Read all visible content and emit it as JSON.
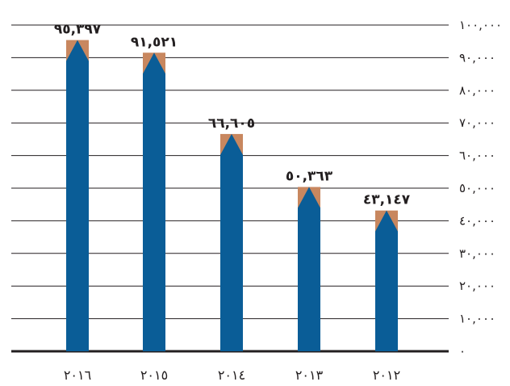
{
  "chart_data": {
    "type": "bar",
    "title": "",
    "xlabel": "",
    "ylabel": "",
    "categories": [
      "٢٠١٦",
      "٢٠١٥",
      "٢٠١٤",
      "٢٠١٣",
      "٢٠١٢"
    ],
    "values": [
      95397,
      91521,
      66605,
      50363,
      43147
    ],
    "value_labels": [
      "٩٥,٣٩٧",
      "٩١,٥٢١",
      "٦٦,٦٠٥",
      "٥٠,٣٦٣",
      "٤٣,١٤٧"
    ],
    "ylim": [
      0,
      100000
    ],
    "yticks": [
      0,
      10000,
      20000,
      30000,
      40000,
      50000,
      60000,
      70000,
      80000,
      90000,
      100000
    ],
    "ytick_labels": [
      "٠",
      "١٠,٠٠٠",
      "٢٠,٠٠٠",
      "٣٠,٠٠٠",
      "٤٠,٠٠٠",
      "٥٠,٠٠٠",
      "٦٠,٠٠٠",
      "٧٠,٠٠٠",
      "٨٠,٠٠٠",
      "٩٠,٠٠٠",
      "١٠٠,٠٠٠"
    ],
    "grid": true,
    "y_axis_side": "right",
    "colors": {
      "bar": "#0a5d97",
      "cap": "#c8875f",
      "grid": "#231f20"
    }
  }
}
